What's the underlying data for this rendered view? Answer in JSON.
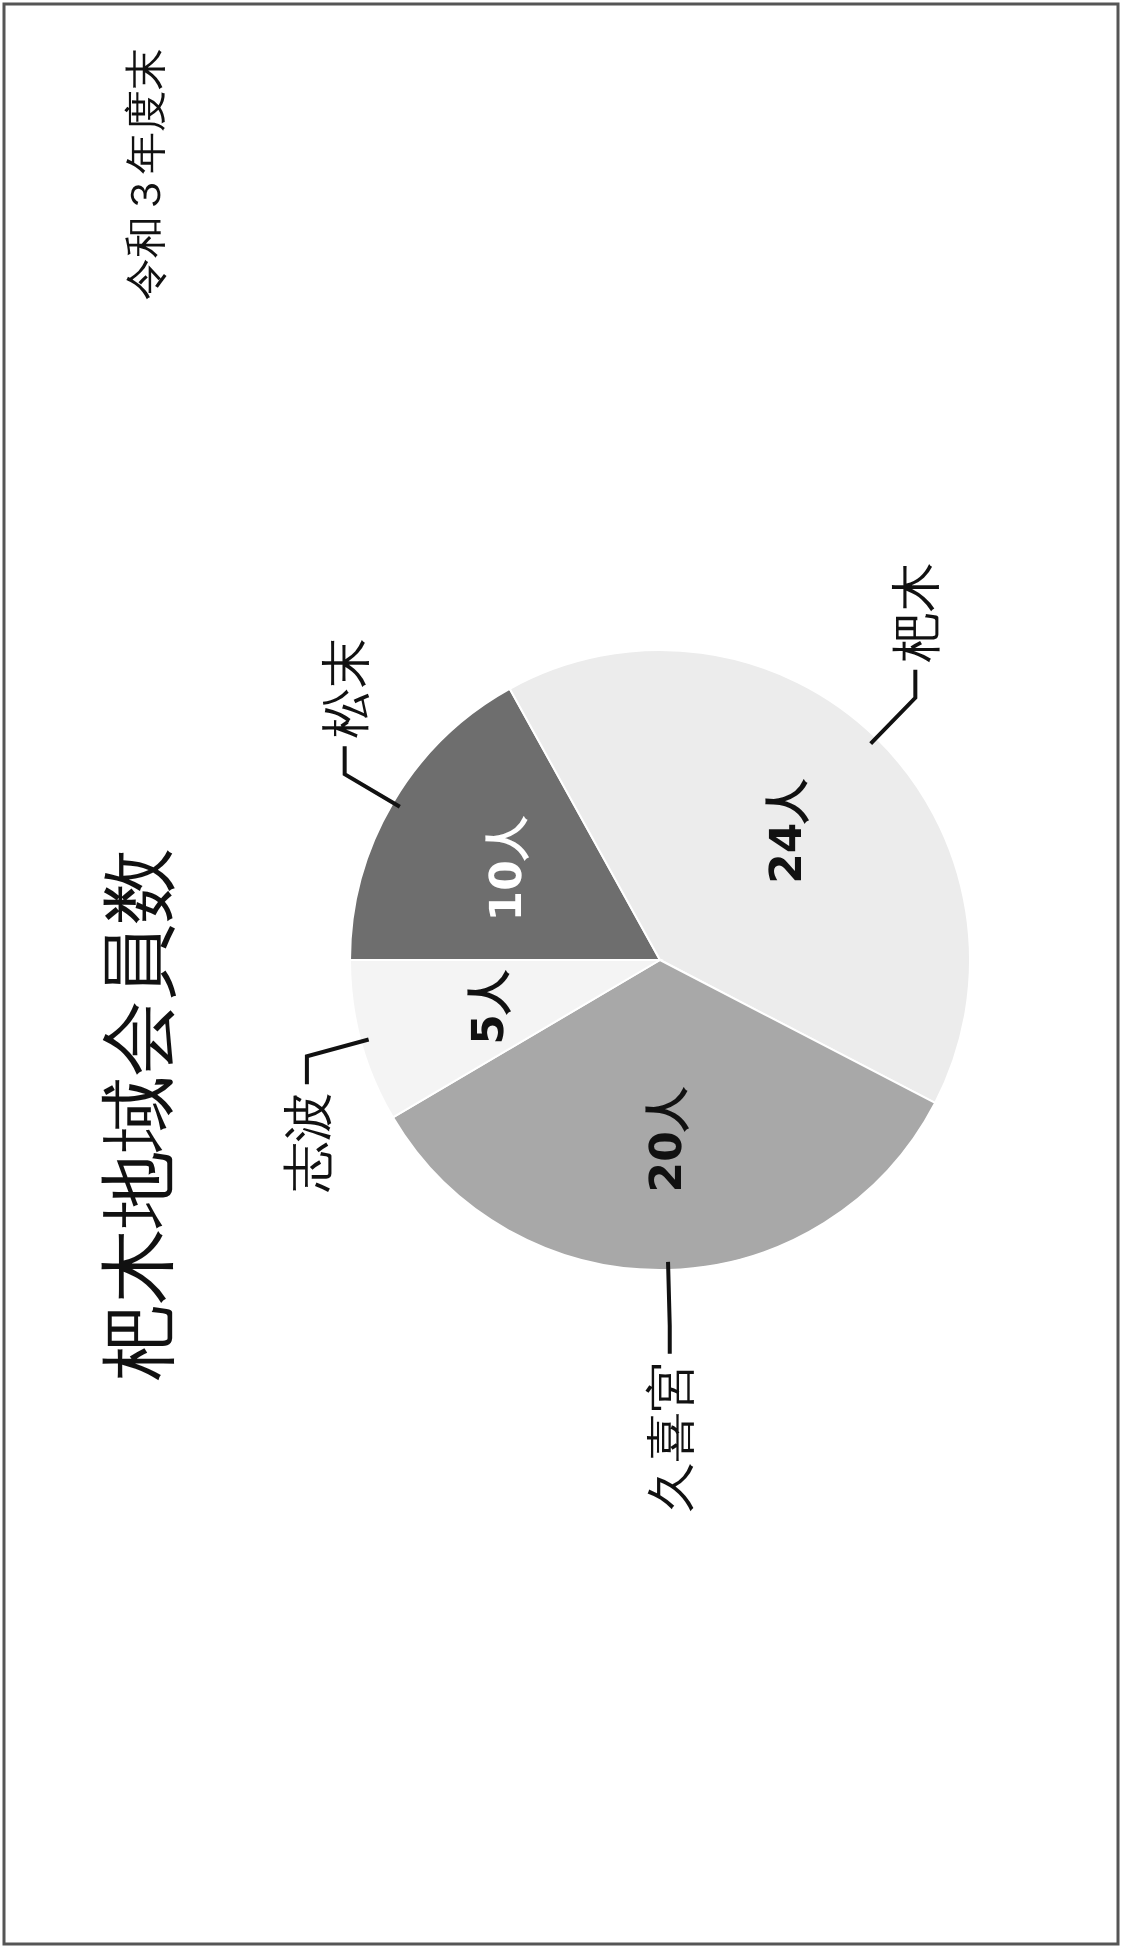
{
  "chart_data": {
    "type": "pie",
    "title": "杷木地域会員数",
    "subtitle": "令和３年度末",
    "categories": [
      "松末",
      "杷木",
      "久喜宮",
      "志波"
    ],
    "values": [
      10,
      24,
      20,
      5
    ],
    "colors": [
      "#6e6e6e",
      "#ececec",
      "#a8a8a8",
      "#f4f4f4"
    ],
    "value_labels": [
      "10人",
      "24人",
      "20人",
      "5人"
    ]
  }
}
